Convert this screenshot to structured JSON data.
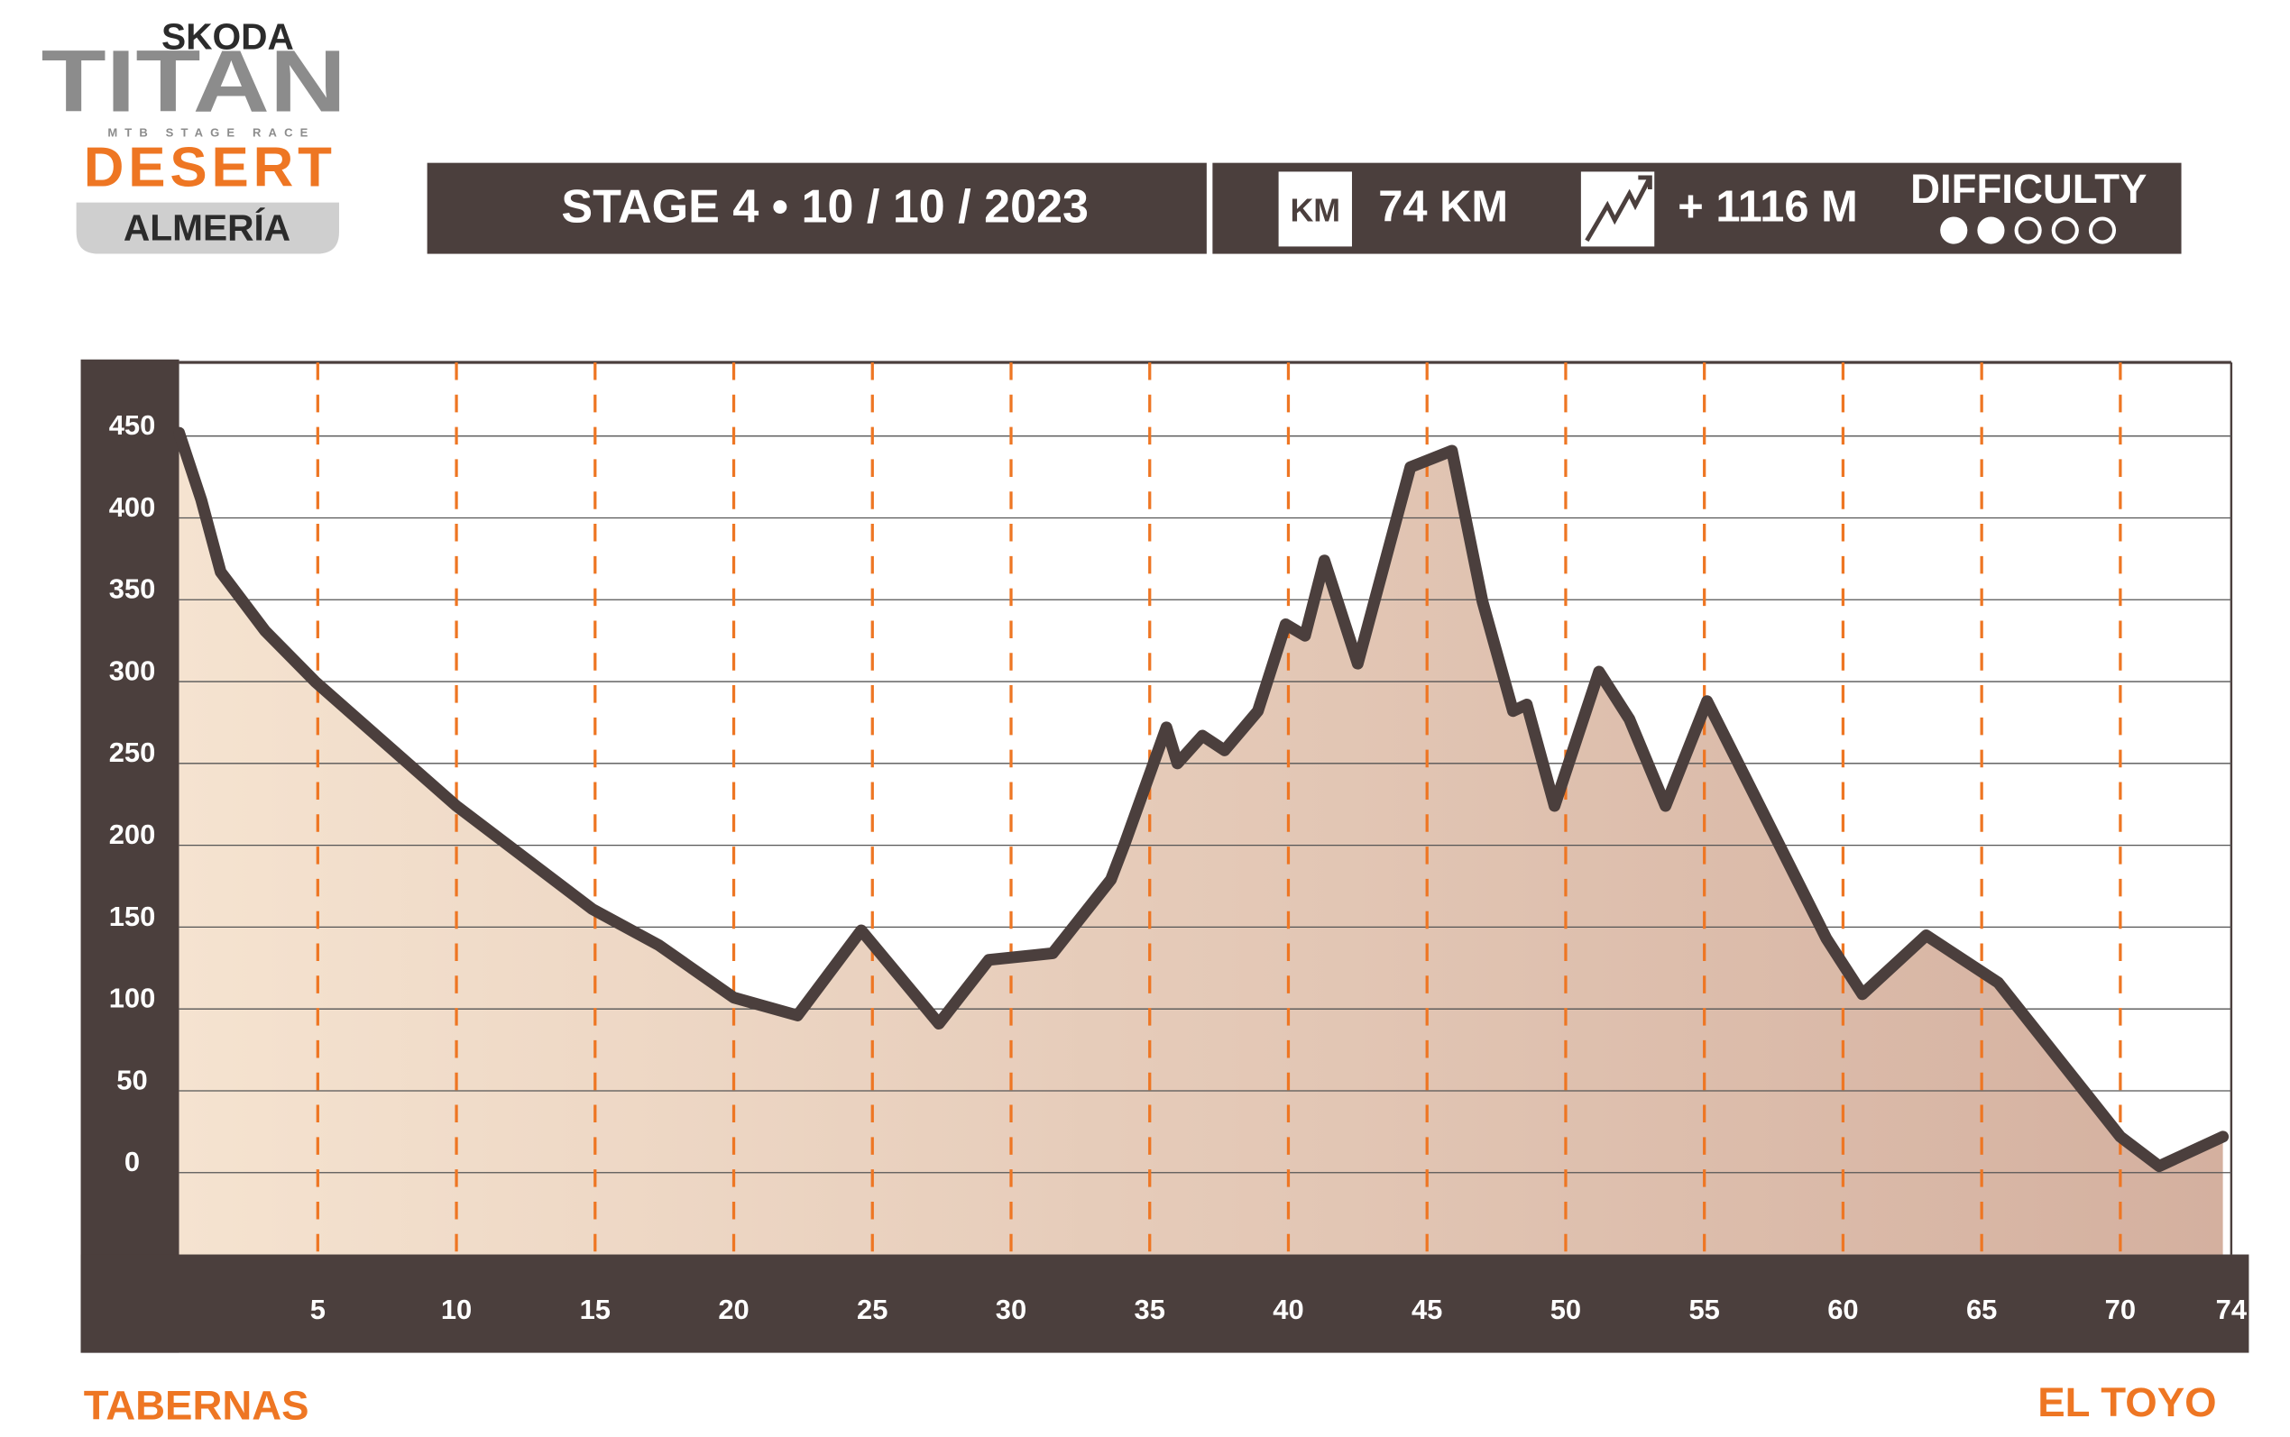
{
  "header": {
    "brand": "SKODA",
    "logo": "TITAN",
    "tagline": "MTB STAGE RACE",
    "event": "DESERT",
    "region": "ALMERÍA",
    "stage": "STAGE 4 • 10 / 10 / 2023",
    "km_icon": "KM",
    "distance": "74 KM",
    "climb": "+ 1116 M",
    "difficulty": {
      "label": "DIFFICULTY",
      "level": 2,
      "max": 5
    }
  },
  "chart_data": {
    "type": "area",
    "x": [
      0,
      0.8,
      1.5,
      3.1,
      4.9,
      10,
      14.9,
      17.3,
      20,
      22.3,
      24.6,
      27.4,
      29.2,
      31.5,
      33.6,
      34.1,
      35.6,
      36,
      36.9,
      37.7,
      38.9,
      39.9,
      40.6,
      41.3,
      42.5,
      44.4,
      45.9,
      47,
      48.1,
      48.6,
      49.6,
      51.2,
      52.3,
      53.6,
      55.1,
      59.4,
      60.7,
      63,
      65.6,
      70,
      71.4,
      73.7
    ],
    "values": [
      452,
      411,
      367,
      331,
      300,
      224,
      161,
      139,
      107,
      96,
      148,
      91,
      130,
      134,
      179,
      201,
      272,
      250,
      267,
      258,
      282,
      335,
      328,
      374,
      311,
      431,
      441,
      349,
      282,
      286,
      224,
      306,
      277,
      224,
      288,
      143,
      109,
      145,
      116,
      22,
      4,
      22
    ],
    "xlim": [
      0,
      74
    ],
    "ylim": [
      -50,
      495
    ],
    "xticks": [
      5,
      10,
      15,
      20,
      25,
      30,
      35,
      40,
      45,
      50,
      55,
      60,
      65,
      70,
      74
    ],
    "yticks": [
      0,
      50,
      100,
      150,
      200,
      250,
      300,
      350,
      400,
      450
    ],
    "grid": true,
    "line_color": "#4b3f3d",
    "fill_colors": [
      "#f5e3d0",
      "#d4b09f"
    ],
    "tick_line_color": "#ee7623",
    "start": "TABERNAS",
    "end": "EL TOYO"
  }
}
